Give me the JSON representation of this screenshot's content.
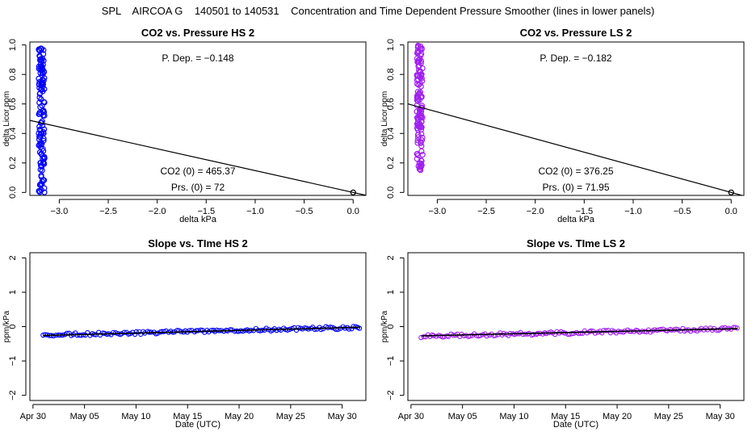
{
  "header": "SPL    AIRCOA G    140501 to 140531    Concentration and Time Dependent Pressure Smoother (lines in lower panels)",
  "chart_data": [
    {
      "type": "scatter",
      "title": "CO2 vs. Pressure HS 2",
      "xlabel": "delta kPa",
      "ylabel": "delta Licor ppm",
      "xlim": [
        -3.3,
        0.13
      ],
      "ylim": [
        -0.02,
        1.02
      ],
      "xticks": [
        -3.0,
        -2.5,
        -2.0,
        -1.5,
        -1.0,
        -0.5,
        0.0
      ],
      "xtick_labels": [
        "−3.0",
        "−2.5",
        "−2.0",
        "−1.5",
        "−1.0",
        "−0.5",
        "0.0"
      ],
      "yticks": [
        0.0,
        0.2,
        0.4,
        0.6,
        0.8,
        1.0
      ],
      "ytick_labels": [
        "0.0",
        "0.2",
        "0.4",
        "0.6",
        "0.8",
        "1.0"
      ],
      "point_color": "#0000ff",
      "cluster": {
        "x_center": -3.18,
        "x_spread": 0.03,
        "y_min": 0.0,
        "y_max": 0.98,
        "count": 130
      },
      "reference_point": {
        "x": 0.0,
        "y": 0.0
      },
      "fit_line": {
        "slope": -0.148,
        "intercept": 0.0
      },
      "annotations": {
        "p_dep": "P. Dep. =  −0.148",
        "co2_0": "CO2 (0) =  465.37",
        "prs_0": "Prs. (0) = 72"
      }
    },
    {
      "type": "scatter",
      "title": "CO2 vs. Pressure LS 2",
      "xlabel": "delta kPa",
      "ylabel": "delta Licor ppm",
      "xlim": [
        -3.3,
        0.13
      ],
      "ylim": [
        -0.02,
        1.02
      ],
      "xticks": [
        -3.0,
        -2.5,
        -2.0,
        -1.5,
        -1.0,
        -0.5,
        0.0
      ],
      "xtick_labels": [
        "−3.0",
        "−2.5",
        "−2.0",
        "−1.5",
        "−1.0",
        "−0.5",
        "0.0"
      ],
      "yticks": [
        0.0,
        0.2,
        0.4,
        0.6,
        0.8,
        1.0
      ],
      "ytick_labels": [
        "0.0",
        "0.2",
        "0.4",
        "0.6",
        "0.8",
        "1.0"
      ],
      "point_color": "#a020f0",
      "cluster": {
        "x_center": -3.18,
        "x_spread": 0.03,
        "y_min": 0.15,
        "y_max": 1.0,
        "count": 130
      },
      "reference_point": {
        "x": 0.0,
        "y": 0.0
      },
      "fit_line": {
        "slope": -0.182,
        "intercept": 0.0
      },
      "annotations": {
        "p_dep": "P. Dep. =  −0.182",
        "co2_0": "CO2 (0) =  376.25",
        "prs_0": "Prs. (0) = 71.95"
      }
    },
    {
      "type": "line",
      "title": "Slope vs. TIme HS 2",
      "xlabel": "Date (UTC)",
      "ylabel": "ppm/kPa",
      "xlim": [
        -0.3,
        32.3
      ],
      "ylim": [
        -2.15,
        2.15
      ],
      "xticks": [
        0,
        5,
        10,
        15,
        20,
        25,
        30
      ],
      "xtick_labels": [
        "Apr 30",
        "May 05",
        "May 10",
        "May 15",
        "May 20",
        "May 25",
        "May 30"
      ],
      "yticks": [
        -2,
        -1,
        0,
        1,
        2
      ],
      "ytick_labels": [
        "−2",
        "−1",
        "0",
        "1",
        "2"
      ],
      "point_color": "#0000ff",
      "x_range": [
        1,
        31.7
      ],
      "trend": {
        "start": -0.25,
        "end": -0.02
      },
      "smoother": {
        "start": -0.26,
        "end": -0.02
      },
      "count": 150
    },
    {
      "type": "line",
      "title": "Slope vs. TIme LS 2",
      "xlabel": "Date (UTC)",
      "ylabel": "ppm/kPa",
      "xlim": [
        -0.3,
        32.3
      ],
      "ylim": [
        -2.15,
        2.15
      ],
      "xticks": [
        0,
        5,
        10,
        15,
        20,
        25,
        30
      ],
      "xtick_labels": [
        "Apr 30",
        "May 05",
        "May 10",
        "May 15",
        "May 20",
        "May 25",
        "May 30"
      ],
      "yticks": [
        -2,
        -1,
        0,
        1,
        2
      ],
      "ytick_labels": [
        "−2",
        "−1",
        "0",
        "1",
        "2"
      ],
      "point_color": "#a020f0",
      "x_range": [
        1,
        31.7
      ],
      "trend": {
        "start": -0.28,
        "end": -0.06
      },
      "smoother": {
        "start": -0.27,
        "end": -0.06
      },
      "count": 150
    }
  ]
}
